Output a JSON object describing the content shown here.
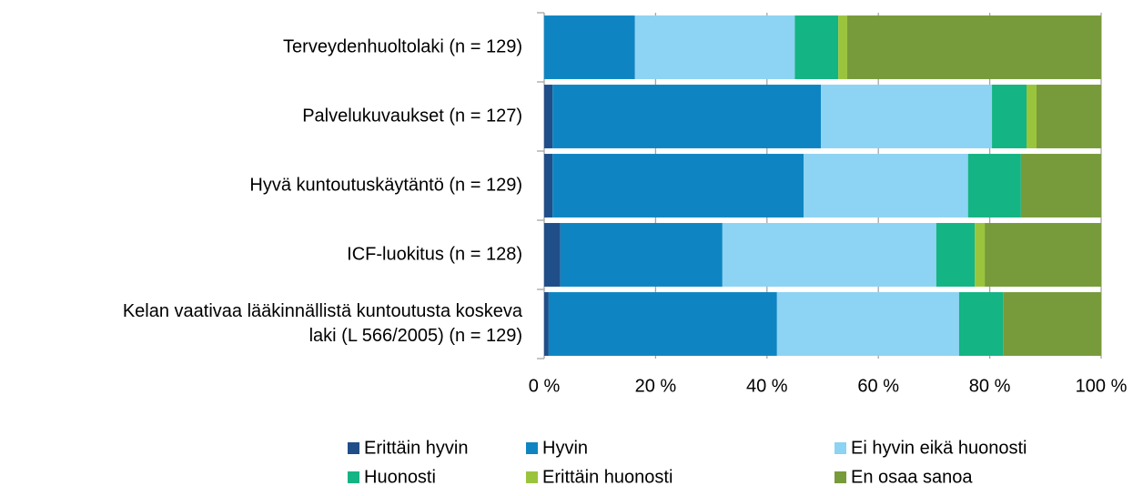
{
  "chart_data": {
    "type": "stacked-barh",
    "categories": [
      "Terveydenhuoltolaki (n = 129)",
      "Palvelukuvaukset (n = 127)",
      "Hyvä kuntoutuskäytäntö (n = 129)",
      "ICF-luokitus (n = 128)",
      "Kelan vaativaa lääkinnällistä kuntoutusta koskeva laki (L 566/2005) (n = 129)"
    ],
    "series": [
      {
        "name": "Erittäin hyvin",
        "color": "#1f4e89",
        "values": [
          0,
          1.5,
          1.5,
          2.9,
          0.8
        ]
      },
      {
        "name": "Hyvin",
        "color": "#0e85c2",
        "values": [
          16.3,
          48.2,
          45.1,
          29.1,
          41.0
        ]
      },
      {
        "name": "Ei hyvin eikä huonosti",
        "color": "#8dd3f3",
        "values": [
          28.7,
          30.7,
          29.5,
          38.4,
          32.7
        ]
      },
      {
        "name": "Huonosti",
        "color": "#14b484",
        "values": [
          7.8,
          6.2,
          9.5,
          6.9,
          7.9
        ]
      },
      {
        "name": "Erittäin huonosti",
        "color": "#9bc43d",
        "values": [
          1.6,
          1.8,
          0,
          1.8,
          0
        ]
      },
      {
        "name": "En osaa sanoa",
        "color": "#779a3a",
        "values": [
          45.6,
          11.6,
          14.4,
          20.9,
          17.6
        ]
      }
    ],
    "xlim": [
      0,
      100
    ],
    "xticks": [
      {
        "value": 0,
        "label": "0 %"
      },
      {
        "value": 20,
        "label": "20 %"
      },
      {
        "value": 40,
        "label": "40 %"
      },
      {
        "value": 60,
        "label": "60 %"
      },
      {
        "value": 80,
        "label": "80 %"
      },
      {
        "value": 100,
        "label": "100 %"
      }
    ],
    "grid": true,
    "legend": "bottom"
  }
}
